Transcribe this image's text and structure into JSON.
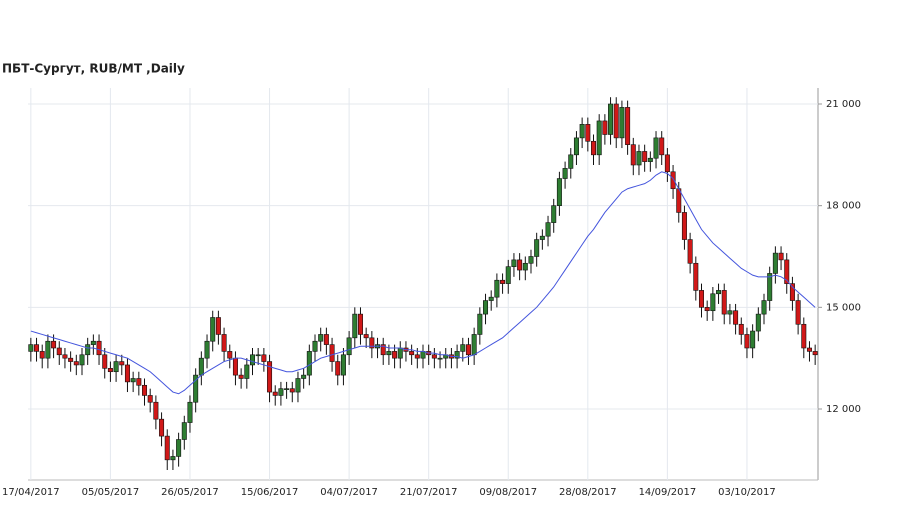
{
  "chart_data": {
    "type": "candlestick",
    "title": "ПБТ-Сургут,  RUB/MT ,Daily",
    "categories": [
      "17/04/2017",
      null,
      null,
      null,
      null,
      null,
      null,
      null,
      null,
      null,
      null,
      null,
      null,
      null,
      "05/05/2017",
      null,
      null,
      null,
      null,
      null,
      null,
      null,
      null,
      null,
      null,
      null,
      null,
      null,
      "26/05/2017",
      null,
      null,
      null,
      null,
      null,
      null,
      null,
      null,
      null,
      null,
      null,
      null,
      null,
      "15/06/2017",
      null,
      null,
      null,
      null,
      null,
      null,
      null,
      null,
      null,
      null,
      null,
      null,
      null,
      "04/07/2017",
      null,
      null,
      null,
      null,
      null,
      null,
      null,
      null,
      null,
      null,
      null,
      null,
      null,
      "21/07/2017",
      null,
      null,
      null,
      null,
      null,
      null,
      null,
      null,
      null,
      null,
      null,
      null,
      null,
      "09/08/2017",
      null,
      null,
      null,
      null,
      null,
      null,
      null,
      null,
      null,
      null,
      null,
      null,
      null,
      "28/08/2017",
      null,
      null,
      null,
      null,
      null,
      null,
      null,
      null,
      null,
      null,
      null,
      null,
      null,
      "14/09/2017",
      null,
      null,
      null,
      null,
      null,
      null,
      null,
      null,
      null,
      null,
      null,
      null,
      null,
      "03/10/2017",
      null,
      null,
      null,
      null,
      null,
      null,
      null,
      null,
      null,
      null,
      null,
      null
    ],
    "open": [
      13700,
      13900,
      13700,
      13500,
      14000,
      13800,
      13600,
      13500,
      13400,
      13300,
      13600,
      13900,
      14000,
      13600,
      13200,
      13100,
      13400,
      13300,
      12800,
      12900,
      12700,
      12400,
      12200,
      11700,
      11200,
      10500,
      10600,
      11100,
      11600,
      12200,
      13000,
      13500,
      14000,
      14700,
      14200,
      13700,
      13500,
      13000,
      12900,
      13300,
      13600,
      13600,
      13400,
      12500,
      12400,
      12600,
      12600,
      12500,
      12900,
      13000,
      13700,
      14000,
      14200,
      13900,
      13400,
      13000,
      13600,
      14100,
      14800,
      14200,
      14100,
      13800,
      13900,
      13600,
      13700,
      13500,
      13800,
      13700,
      13600,
      13500,
      13700,
      13600,
      13500,
      13500,
      13600,
      13500,
      13700,
      13900,
      13600,
      14200,
      14800,
      15200,
      15300,
      15800,
      15700,
      16200,
      16400,
      16100,
      16300,
      16500,
      17000,
      17100,
      17500,
      18000,
      18800,
      19100,
      19500,
      20000,
      20400,
      19900,
      19500,
      20500,
      20100,
      21000,
      20000,
      20900,
      19800,
      19200,
      19600,
      19300,
      19400,
      20000,
      19500,
      19000,
      18500,
      17800,
      17000,
      16300,
      15500,
      15000,
      14900,
      15400,
      15500,
      14800,
      14900,
      14500,
      14200,
      13800,
      14300,
      14800,
      15200,
      16000,
      16600,
      16400,
      15700,
      15200,
      14500,
      13800,
      13700
    ],
    "close": [
      13900,
      13700,
      13500,
      14000,
      13800,
      13600,
      13500,
      13400,
      13300,
      13600,
      13900,
      14000,
      13600,
      13200,
      13100,
      13400,
      13300,
      12800,
      12900,
      12700,
      12400,
      12200,
      11700,
      11200,
      10500,
      10600,
      11100,
      11600,
      12200,
      13000,
      13500,
      14000,
      14700,
      14200,
      13700,
      13500,
      13000,
      12900,
      13300,
      13600,
      13600,
      13400,
      12500,
      12400,
      12600,
      12600,
      12500,
      12900,
      13000,
      13700,
      14000,
      14200,
      13900,
      13400,
      13000,
      13600,
      14100,
      14800,
      14200,
      14100,
      13800,
      13900,
      13600,
      13700,
      13500,
      13800,
      13700,
      13600,
      13500,
      13700,
      13600,
      13500,
      13500,
      13600,
      13500,
      13700,
      13900,
      13600,
      14200,
      14800,
      15200,
      15300,
      15800,
      15700,
      16200,
      16400,
      16100,
      16300,
      16500,
      17000,
      17100,
      17500,
      18000,
      18800,
      19100,
      19500,
      20000,
      20400,
      19900,
      19500,
      20500,
      20100,
      21000,
      20000,
      20900,
      19800,
      19200,
      19600,
      19300,
      19400,
      20000,
      19500,
      19000,
      18500,
      17800,
      17000,
      16300,
      15500,
      15000,
      14900,
      15400,
      15500,
      14800,
      14900,
      14500,
      14200,
      13800,
      14300,
      14800,
      15200,
      16000,
      16600,
      16400,
      15700,
      15200,
      14500,
      13800,
      13700,
      13600
    ],
    "high": [
      14100,
      14100,
      13900,
      14200,
      14200,
      14000,
      13800,
      13700,
      13600,
      13800,
      14100,
      14200,
      14200,
      13800,
      13400,
      13600,
      13600,
      13500,
      13100,
      13100,
      12900,
      12600,
      12400,
      11900,
      11400,
      10800,
      11300,
      11800,
      12400,
      13200,
      13700,
      14200,
      14900,
      14900,
      14400,
      13900,
      13700,
      13200,
      13500,
      13800,
      13800,
      13800,
      13600,
      12700,
      12800,
      12800,
      12800,
      13100,
      13200,
      13900,
      14200,
      14400,
      14400,
      14100,
      13600,
      13800,
      14300,
      15000,
      15000,
      14400,
      14300,
      14100,
      14100,
      13900,
      13900,
      14000,
      14000,
      13900,
      13800,
      13900,
      13900,
      13800,
      13700,
      13800,
      13800,
      13900,
      14100,
      14100,
      14400,
      15000,
      15400,
      15500,
      16000,
      16000,
      16400,
      16600,
      16600,
      16500,
      16700,
      17200,
      17300,
      17700,
      18200,
      19000,
      19300,
      19700,
      20200,
      20600,
      20600,
      20100,
      20700,
      20700,
      21200,
      21200,
      21100,
      21100,
      20000,
      19800,
      19800,
      19600,
      20200,
      20200,
      19700,
      19200,
      18700,
      18000,
      17200,
      16500,
      15700,
      15200,
      15600,
      15700,
      15700,
      15100,
      15100,
      14700,
      14400,
      14500,
      15000,
      15400,
      16200,
      16800,
      16800,
      16600,
      15900,
      15400,
      14700,
      14000,
      13900
    ],
    "low": [
      13400,
      13400,
      13200,
      13200,
      13500,
      13300,
      13200,
      13100,
      13000,
      13000,
      13300,
      13600,
      13300,
      12900,
      12800,
      12800,
      13000,
      12500,
      12500,
      12400,
      12100,
      11900,
      11400,
      10900,
      10200,
      10200,
      10300,
      10800,
      11300,
      11900,
      12700,
      13200,
      13700,
      13900,
      13400,
      13200,
      12700,
      12600,
      12600,
      13000,
      13300,
      13100,
      12200,
      12100,
      12100,
      12300,
      12200,
      12200,
      12600,
      12700,
      13400,
      13700,
      13600,
      13100,
      12700,
      12700,
      13300,
      13800,
      13900,
      13800,
      13500,
      13500,
      13300,
      13300,
      13200,
      13200,
      13400,
      13300,
      13200,
      13200,
      13300,
      13200,
      13200,
      13200,
      13200,
      13200,
      13400,
      13300,
      13300,
      13900,
      14500,
      14900,
      15000,
      15400,
      15400,
      15900,
      15800,
      15800,
      16000,
      16200,
      16700,
      16800,
      17200,
      17700,
      18500,
      18800,
      19200,
      19700,
      19600,
      19200,
      19200,
      19800,
      19800,
      19700,
      19700,
      19500,
      18900,
      18900,
      19000,
      19000,
      19100,
      19200,
      18700,
      18200,
      17500,
      16700,
      16000,
      15200,
      14700,
      14600,
      14600,
      15100,
      14500,
      14500,
      14200,
      13900,
      13500,
      13500,
      14000,
      14500,
      14900,
      15700,
      16100,
      15400,
      14900,
      14200,
      13500,
      13400,
      13300
    ],
    "up_color": "#2e7d32",
    "down_color": "#d01818",
    "line": {
      "color": "#4455dd",
      "values": [
        14300,
        14250,
        14200,
        14150,
        14100,
        14050,
        14000,
        13950,
        13900,
        13850,
        13800,
        13800,
        13750,
        13700,
        13650,
        13600,
        13550,
        13500,
        13400,
        13300,
        13200,
        13100,
        12950,
        12800,
        12650,
        12500,
        12450,
        12550,
        12700,
        12850,
        13000,
        13100,
        13200,
        13300,
        13400,
        13450,
        13500,
        13500,
        13450,
        13400,
        13350,
        13300,
        13250,
        13200,
        13150,
        13100,
        13100,
        13150,
        13200,
        13300,
        13400,
        13500,
        13550,
        13600,
        13650,
        13700,
        13750,
        13800,
        13850,
        13850,
        13850,
        13850,
        13850,
        13800,
        13800,
        13800,
        13750,
        13750,
        13700,
        13700,
        13650,
        13650,
        13600,
        13600,
        13550,
        13550,
        13500,
        13550,
        13600,
        13700,
        13800,
        13900,
        14000,
        14100,
        14250,
        14400,
        14550,
        14700,
        14850,
        15000,
        15200,
        15400,
        15600,
        15850,
        16100,
        16350,
        16600,
        16850,
        17100,
        17300,
        17550,
        17800,
        18000,
        18200,
        18400,
        18500,
        18550,
        18600,
        18650,
        18750,
        18900,
        19000,
        18950,
        18800,
        18500,
        18200,
        17900,
        17600,
        17300,
        17100,
        16900,
        16750,
        16600,
        16450,
        16300,
        16150,
        16050,
        15950,
        15900,
        15900,
        15900,
        15950,
        15900,
        15800,
        15600,
        15450,
        15300,
        15150,
        15000
      ]
    },
    "ylim": [
      9905,
      21472
    ],
    "yticks": [
      {
        "value": 12000,
        "label": "12 000"
      },
      {
        "value": 15000,
        "label": "15 000"
      },
      {
        "value": 18000,
        "label": "18 000"
      },
      {
        "value": 21000,
        "label": "21 000"
      }
    ],
    "grid": true
  }
}
